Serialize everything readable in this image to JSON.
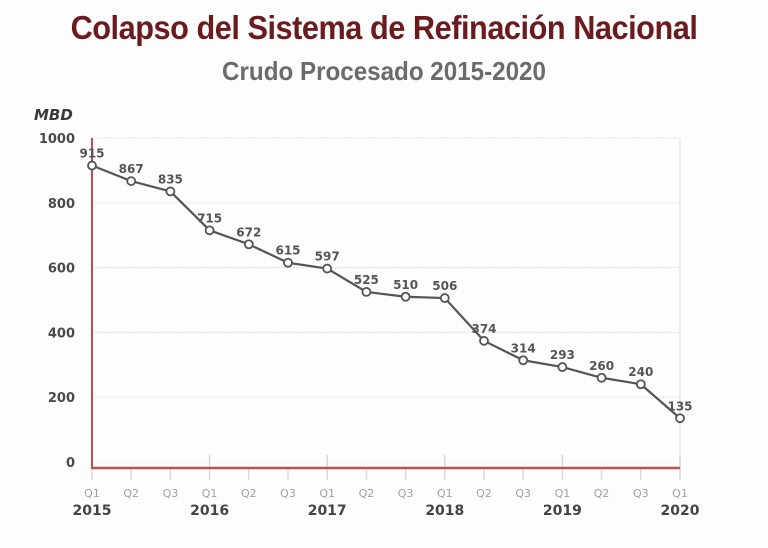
{
  "chart_data": {
    "type": "line",
    "title": "Colapso del Sistema de Refinación Nacional",
    "subtitle": "Crudo Procesado 2015-2020",
    "ylabel": "MBD",
    "xlabel": "",
    "ylim": [
      0,
      1000
    ],
    "yticks": [
      0,
      200,
      400,
      600,
      800,
      1000
    ],
    "grid": true,
    "legend": "none",
    "colors": {
      "line": "#555555",
      "axis": "#c0504d",
      "title": "#6b1a1d",
      "subtitle": "#6b6b6b",
      "grid": "#e6e6e6"
    },
    "categories": [
      "Q1",
      "Q2",
      "Q3",
      "Q1",
      "Q2",
      "Q3",
      "Q1",
      "Q2",
      "Q3",
      "Q1",
      "Q2",
      "Q3",
      "Q1",
      "Q2",
      "Q3",
      "Q1"
    ],
    "year_labels": [
      {
        "index": 0,
        "label": "2015"
      },
      {
        "index": 3,
        "label": "2016"
      },
      {
        "index": 6,
        "label": "2017"
      },
      {
        "index": 9,
        "label": "2018"
      },
      {
        "index": 12,
        "label": "2019"
      },
      {
        "index": 15,
        "label": "2020"
      }
    ],
    "series": [
      {
        "name": "Crudo Procesado",
        "values": [
          915,
          867,
          835,
          715,
          672,
          615,
          597,
          525,
          510,
          506,
          374,
          314,
          293,
          260,
          240,
          135
        ]
      }
    ]
  }
}
